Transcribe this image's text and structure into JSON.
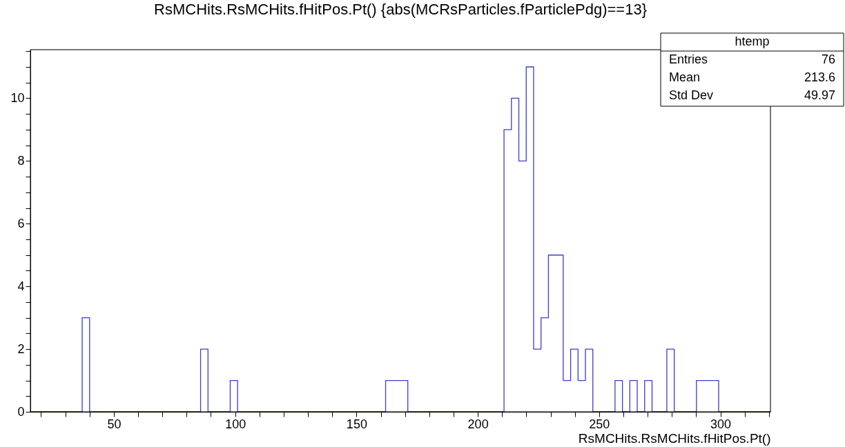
{
  "chart_data": {
    "type": "histogram",
    "title": "RsMCHits.RsMCHits.fHitPos.Pt() {abs(MCRsParticles.fParticlePdg)==13}",
    "xlabel": "RsMCHits.RsMCHits.fHitPos.Pt()",
    "color": "#3d3dc8",
    "bins": [
      15.6,
      18.65,
      21.7,
      24.75,
      27.8,
      30.85,
      33.9,
      36.95,
      40,
      43.05,
      46.1,
      49.15,
      52.2,
      55.25,
      58.3,
      61.35,
      64.4,
      67.45,
      70.5,
      73.55,
      76.6,
      79.65,
      82.7,
      85.75,
      88.8,
      91.85,
      94.9,
      97.95,
      101,
      104.05,
      107.1,
      110.15,
      113.2,
      116.25,
      119.3,
      122.35,
      125.4,
      128.45,
      131.5,
      134.55,
      137.6,
      140.65,
      143.7,
      146.75,
      149.8,
      152.85,
      155.9,
      158.95,
      162,
      165.05,
      168.1,
      171.15,
      174.2,
      177.25,
      180.3,
      183.35,
      186.4,
      189.45,
      192.5,
      195.55,
      198.6,
      201.65,
      204.7,
      207.75,
      210.8,
      213.85,
      216.9,
      219.95,
      223,
      226.05,
      229.1,
      232.15,
      235.2,
      238.25,
      241.3,
      244.35,
      247.4,
      250.45,
      253.5,
      256.55,
      259.6,
      262.65,
      265.7,
      268.75,
      271.8,
      274.85,
      277.9,
      280.95,
      284,
      287.05,
      290.1,
      293.15,
      296.2,
      299.25,
      302.3,
      305.35,
      308.4,
      311.45,
      314.5,
      317.55,
      320.6
    ],
    "values": [
      0,
      0,
      0,
      0,
      0,
      0,
      0,
      3,
      0,
      0,
      0,
      0,
      0,
      0,
      0,
      0,
      0,
      0,
      0,
      0,
      0,
      0,
      0,
      2,
      0,
      0,
      0,
      1,
      0,
      0,
      0,
      0,
      0,
      0,
      0,
      0,
      0,
      0,
      0,
      0,
      0,
      0,
      0,
      0,
      0,
      0,
      0,
      0,
      1,
      1,
      1,
      0,
      0,
      0,
      0,
      0,
      0,
      0,
      0,
      0,
      0,
      0,
      0,
      0,
      9,
      10,
      8,
      11,
      2,
      3,
      5,
      5,
      1,
      2,
      1,
      2,
      0,
      0,
      0,
      1,
      0,
      1,
      0,
      1,
      0,
      0,
      2,
      0,
      0,
      0,
      1,
      1,
      1,
      0,
      0,
      0,
      0,
      0,
      0,
      0
    ],
    "xlim": [
      15.6,
      320.6
    ],
    "ylim": [
      0,
      11.55
    ],
    "xticks": [
      {
        "value": 20,
        "label": null
      },
      {
        "value": 30,
        "label": null
      },
      {
        "value": 40,
        "label": null
      },
      50,
      {
        "value": 60,
        "label": null
      },
      {
        "value": 70,
        "label": null
      },
      {
        "value": 80,
        "label": null
      },
      {
        "value": 90,
        "label": null
      },
      100,
      {
        "value": 110,
        "label": null
      },
      {
        "value": 120,
        "label": null
      },
      {
        "value": 130,
        "label": null
      },
      {
        "value": 140,
        "label": null
      },
      150,
      {
        "value": 160,
        "label": null
      },
      {
        "value": 170,
        "label": null
      },
      {
        "value": 180,
        "label": null
      },
      {
        "value": 190,
        "label": null
      },
      200,
      {
        "value": 210,
        "label": null
      },
      {
        "value": 220,
        "label": null
      },
      {
        "value": 230,
        "label": null
      },
      {
        "value": 240,
        "label": null
      },
      250,
      {
        "value": 260,
        "label": null
      },
      {
        "value": 270,
        "label": null
      },
      {
        "value": 280,
        "label": null
      },
      {
        "value": 290,
        "label": null
      },
      300,
      {
        "value": 310,
        "label": null
      },
      {
        "value": 320,
        "label": null
      }
    ],
    "yticks": [
      0,
      {
        "value": 0.5,
        "label": null
      },
      {
        "value": 1,
        "label": null
      },
      {
        "value": 1.5,
        "label": null
      },
      2,
      {
        "value": 2.5,
        "label": null
      },
      {
        "value": 3,
        "label": null
      },
      {
        "value": 3.5,
        "label": null
      },
      4,
      {
        "value": 4.5,
        "label": null
      },
      {
        "value": 5,
        "label": null
      },
      {
        "value": 5.5,
        "label": null
      },
      6,
      {
        "value": 6.5,
        "label": null
      },
      {
        "value": 7,
        "label": null
      },
      {
        "value": 7.5,
        "label": null
      },
      8,
      {
        "value": 8.5,
        "label": null
      },
      {
        "value": 9,
        "label": null
      },
      {
        "value": 9.5,
        "label": null
      },
      10,
      {
        "value": 10.5,
        "label": null
      },
      {
        "value": 11,
        "label": null
      },
      {
        "value": 11.5,
        "label": null
      }
    ],
    "grid": false,
    "annotations": [
      "htemp",
      "Entries",
      "76",
      "Mean",
      "213.6",
      "Std Dev",
      "49.97"
    ]
  }
}
